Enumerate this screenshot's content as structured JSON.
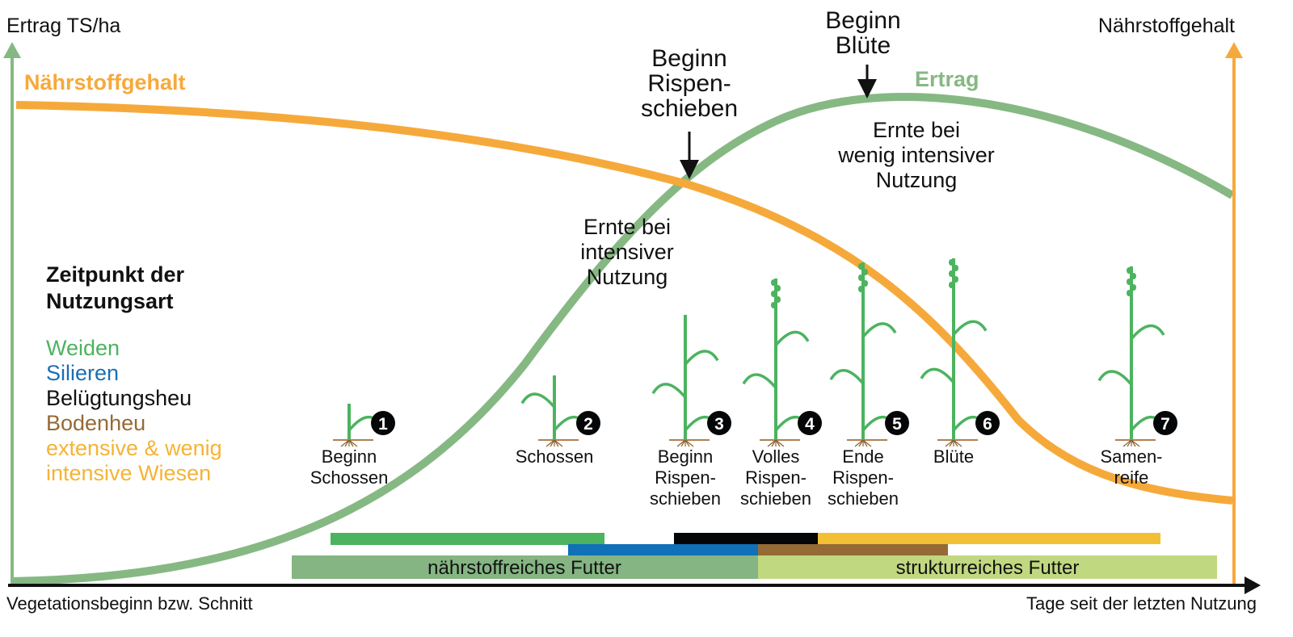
{
  "axes": {
    "y_left_label": "Ertrag TS/ha",
    "y_right_label": "Nährstoffgehalt",
    "x_left_label": "Vegetationsbeginn bzw. Schnitt",
    "x_right_label": "Tage seit der letzten Nutzung"
  },
  "curves": {
    "nutrient_label": "Nährstoffgehalt",
    "yield_label": "Ertrag",
    "nutrient_color": "#f6a93b",
    "yield_color": "#86b883"
  },
  "annotations": {
    "rispen": [
      "Beginn",
      "Rispen-",
      "schieben"
    ],
    "bluete": [
      "Beginn",
      "Blüte"
    ],
    "intensive": [
      "Ernte bei",
      "intensiver",
      "Nutzung"
    ],
    "less_intensive": [
      "Ernte bei",
      "wenig intensiver",
      "Nutzung"
    ]
  },
  "legend": {
    "title": [
      "Zeitpunkt der",
      "Nutzungsart"
    ],
    "items": [
      {
        "label": "Weiden",
        "color": "#4cb35f"
      },
      {
        "label": "Silieren",
        "color": "#1a6fb5"
      },
      {
        "label": "Belügtungsheu",
        "color": "#111111"
      },
      {
        "label": "Bodenheu",
        "color": "#956a35"
      },
      {
        "label": "extensive & wenig",
        "color": "#f5b335"
      },
      {
        "label": "intensive Wiesen",
        "color": "#f5b335"
      }
    ]
  },
  "stages": [
    {
      "number": "1",
      "label": [
        "Beginn",
        "Schossen"
      ]
    },
    {
      "number": "2",
      "label": [
        "Schossen"
      ]
    },
    {
      "number": "3",
      "label": [
        "Beginn",
        "Rispen-",
        "schieben"
      ]
    },
    {
      "number": "4",
      "label": [
        "Volles",
        "Rispen-",
        "schieben"
      ]
    },
    {
      "number": "5",
      "label": [
        "Ende",
        "Rispen-",
        "schieben"
      ]
    },
    {
      "number": "6",
      "label": [
        "Blüte"
      ]
    },
    {
      "number": "7",
      "label": [
        "Samen-",
        "reife"
      ]
    }
  ],
  "bars": {
    "weiden_color": "#4cb35f",
    "silieren_color": "#1070b8",
    "belueftung_color": "#050608",
    "extensive_color": "#f3c035",
    "bodenheu_color": "#956a35",
    "naehrstoff_label": "nährstoffreiches Futter",
    "naehrstoff_color": "#84b582",
    "struktur_label": "strukturreiches Futter",
    "struktur_color": "#c0d880"
  }
}
